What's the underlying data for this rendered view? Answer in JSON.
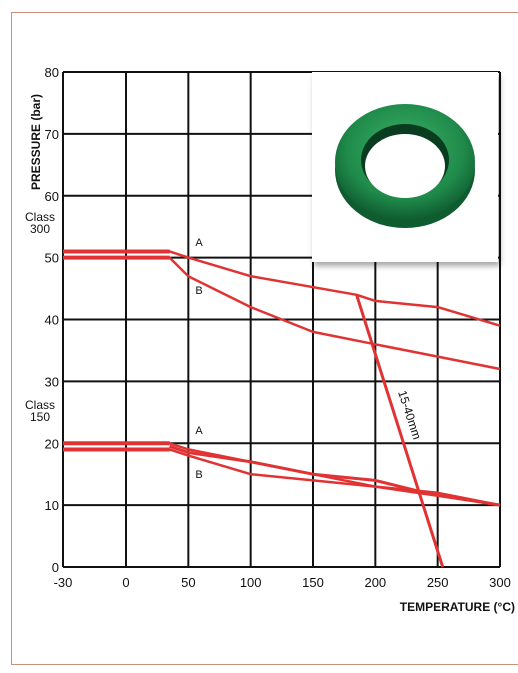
{
  "chart_data": {
    "type": "line",
    "title": "",
    "xlabel": "TEMPERATURE (°C)",
    "ylabel": "PRESSURE (bar)",
    "xlim": [
      -30,
      300
    ],
    "ylim": [
      0,
      80
    ],
    "x_ticks": [
      "-30",
      "0",
      "50",
      "100",
      "150",
      "200",
      "250",
      "300"
    ],
    "y_ticks": [
      "0",
      "10",
      "20",
      "30",
      "40",
      "50",
      "60",
      "70",
      "80"
    ],
    "grid": true,
    "class_labels": [
      {
        "id": "class300",
        "lines": [
          "Class",
          "300"
        ]
      },
      {
        "id": "class150",
        "lines": [
          "Class",
          "150"
        ]
      }
    ],
    "range_label": "15-40mm",
    "series": [
      {
        "name": "A",
        "group": "class300",
        "x": [
          -30,
          35,
          50,
          100,
          185,
          200,
          250,
          300
        ],
        "y": [
          51,
          51,
          50,
          47,
          44,
          43,
          42,
          39
        ]
      },
      {
        "name": "B",
        "group": "class300",
        "x": [
          -30,
          35,
          50,
          100,
          150,
          200,
          250,
          300
        ],
        "y": [
          50,
          50,
          47,
          42,
          38,
          36,
          34,
          32
        ]
      },
      {
        "name": "A",
        "group": "class150",
        "x": [
          -30,
          35,
          50,
          100,
          150,
          200,
          250,
          300
        ],
        "y": [
          20,
          20,
          19,
          17,
          15,
          13,
          12,
          10
        ]
      },
      {
        "name": "B",
        "group": "class150",
        "x": [
          -30,
          35,
          50,
          100,
          150,
          200,
          250,
          300
        ],
        "y": [
          19,
          19,
          18,
          15,
          14,
          13,
          11.5,
          10
        ]
      },
      {
        "name": "",
        "group": "class150",
        "x": [
          35,
          50,
          100,
          150,
          200,
          240,
          300
        ],
        "y": [
          19.5,
          18.5,
          17,
          15,
          14,
          12,
          10
        ]
      },
      {
        "name": "",
        "group": "size-limit",
        "x": [
          185,
          254
        ],
        "y": [
          44,
          0
        ]
      }
    ]
  },
  "colors": {
    "grid": "#111111",
    "curve": "#e03333",
    "frame": "#c98f7a"
  },
  "inset_image": {
    "icon": "green-ring-seal-icon",
    "color": "#1f8a4a"
  }
}
